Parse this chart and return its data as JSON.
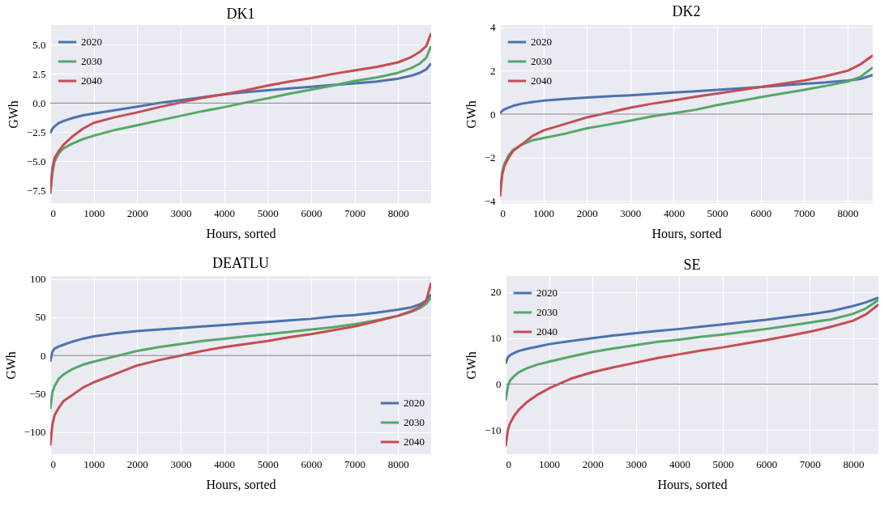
{
  "chart_data": [
    {
      "type": "line",
      "title": "DK1",
      "xlabel": "Hours, sorted",
      "ylabel": "GWh",
      "xlim": [
        0,
        8760
      ],
      "xticks": [
        0,
        1000,
        2000,
        3000,
        4000,
        5000,
        6000,
        7000,
        8000
      ],
      "ylim": [
        -8.6,
        6.7
      ],
      "yticks": [
        {
          "value": -7.5,
          "label": "−7.5"
        },
        {
          "value": -5,
          "label": "−5.0"
        },
        {
          "value": -2.5,
          "label": "−2.5"
        },
        {
          "value": 0,
          "label": "0.0"
        },
        {
          "value": 2.5,
          "label": "2.5"
        },
        {
          "value": 5,
          "label": "5.0"
        }
      ],
      "grid": true,
      "legend": "top left",
      "ref_lines": [
        {
          "axis": "y",
          "value": 0,
          "color": "#808080"
        }
      ],
      "x": [
        0,
        50,
        100,
        200,
        300,
        500,
        750,
        1000,
        1500,
        2000,
        2500,
        3000,
        3500,
        4000,
        4500,
        5000,
        5500,
        6000,
        6500,
        7000,
        7500,
        8000,
        8300,
        8500,
        8650,
        8760
      ],
      "series": [
        {
          "name": "2020",
          "color": "#4c72b0",
          "values": [
            -2.6,
            -2.2,
            -2.0,
            -1.7,
            -1.55,
            -1.3,
            -1.05,
            -0.9,
            -0.6,
            -0.3,
            0.0,
            0.25,
            0.5,
            0.75,
            0.95,
            1.1,
            1.25,
            1.4,
            1.55,
            1.7,
            1.85,
            2.1,
            2.35,
            2.6,
            2.9,
            3.4
          ]
        },
        {
          "name": "2030",
          "color": "#55a868",
          "values": [
            -7.8,
            -6.0,
            -5.0,
            -4.3,
            -3.9,
            -3.5,
            -3.1,
            -2.8,
            -2.3,
            -1.9,
            -1.5,
            -1.1,
            -0.7,
            -0.35,
            0.05,
            0.4,
            0.8,
            1.15,
            1.5,
            1.9,
            2.2,
            2.6,
            3.0,
            3.4,
            3.9,
            4.9
          ]
        },
        {
          "name": "2040",
          "color": "#c44e52",
          "values": [
            -7.6,
            -5.6,
            -4.7,
            -4.1,
            -3.6,
            -2.9,
            -2.2,
            -1.7,
            -1.2,
            -0.8,
            -0.35,
            0.05,
            0.45,
            0.75,
            1.1,
            1.5,
            1.85,
            2.15,
            2.5,
            2.8,
            3.1,
            3.5,
            3.95,
            4.4,
            4.9,
            6.0
          ]
        }
      ]
    },
    {
      "type": "line",
      "title": "DK2",
      "xlabel": "Hours, sorted",
      "ylabel": "GWh",
      "xlim": [
        0,
        8580
      ],
      "xticks": [
        0,
        1000,
        2000,
        3000,
        4000,
        5000,
        6000,
        7000,
        8000
      ],
      "ylim": [
        -4.1,
        4.1
      ],
      "yticks": [
        {
          "value": -4,
          "label": "−4"
        },
        {
          "value": -2,
          "label": "−2"
        },
        0,
        2,
        4
      ],
      "grid": true,
      "legend": "top left",
      "ref_lines": [
        {
          "axis": "y",
          "value": 0,
          "color": "#808080"
        }
      ],
      "x": [
        0,
        50,
        100,
        200,
        300,
        500,
        750,
        1000,
        1500,
        2000,
        2500,
        3000,
        3500,
        4000,
        4500,
        5000,
        5500,
        6000,
        6500,
        7000,
        7500,
        8000,
        8300,
        8580
      ],
      "series": [
        {
          "name": "2020",
          "color": "#4c72b0",
          "values": [
            0.05,
            0.15,
            0.22,
            0.3,
            0.38,
            0.48,
            0.56,
            0.62,
            0.7,
            0.76,
            0.82,
            0.87,
            0.93,
            1.0,
            1.05,
            1.12,
            1.18,
            1.25,
            1.32,
            1.4,
            1.46,
            1.55,
            1.62,
            1.8
          ]
        },
        {
          "name": "2030",
          "color": "#55a868",
          "values": [
            -3.7,
            -2.7,
            -2.3,
            -1.9,
            -1.65,
            -1.4,
            -1.2,
            -1.1,
            -0.9,
            -0.65,
            -0.48,
            -0.3,
            -0.1,
            0.05,
            0.2,
            0.42,
            0.6,
            0.78,
            0.95,
            1.12,
            1.3,
            1.5,
            1.72,
            2.15
          ]
        },
        {
          "name": "2040",
          "color": "#c44e52",
          "values": [
            -3.8,
            -2.8,
            -2.4,
            -2.0,
            -1.7,
            -1.4,
            -1.0,
            -0.75,
            -0.45,
            -0.15,
            0.07,
            0.3,
            0.48,
            0.63,
            0.8,
            0.95,
            1.1,
            1.25,
            1.4,
            1.55,
            1.75,
            2.0,
            2.3,
            2.7
          ]
        }
      ]
    },
    {
      "type": "line",
      "title": "DEATLU",
      "xlabel": "Hours, sorted",
      "ylabel": "GWh",
      "xlim": [
        0,
        8760
      ],
      "xticks": [
        0,
        1000,
        2000,
        3000,
        4000,
        5000,
        6000,
        7000,
        8000
      ],
      "ylim": [
        -129,
        104
      ],
      "yticks": [
        {
          "value": -100,
          "label": "−100"
        },
        {
          "value": -50,
          "label": "−50"
        },
        0,
        50,
        100
      ],
      "grid": true,
      "legend": "bottom right",
      "ref_lines": [
        {
          "axis": "y",
          "value": 0,
          "color": "#808080"
        }
      ],
      "x": [
        0,
        50,
        100,
        200,
        300,
        500,
        750,
        1000,
        1500,
        2000,
        2500,
        3000,
        3500,
        4000,
        4500,
        5000,
        5500,
        6000,
        6500,
        7000,
        7500,
        8000,
        8300,
        8500,
        8650,
        8760
      ],
      "series": [
        {
          "name": "2020",
          "color": "#4c72b0",
          "values": [
            -8,
            5,
            9,
            12,
            14,
            18,
            22,
            25,
            29,
            32,
            34,
            36,
            38,
            40,
            42,
            44,
            46,
            48,
            51,
            53,
            56,
            60,
            63,
            67,
            72,
            80
          ]
        },
        {
          "name": "2030",
          "color": "#55a868",
          "values": [
            -70,
            -48,
            -40,
            -30,
            -25,
            -18,
            -12,
            -8,
            -1,
            6,
            11,
            15,
            19,
            22,
            25,
            28,
            31,
            34,
            37,
            41,
            46,
            52,
            57,
            62,
            68,
            76
          ]
        },
        {
          "name": "2040",
          "color": "#c44e52",
          "values": [
            -118,
            -90,
            -78,
            -68,
            -60,
            -52,
            -42,
            -35,
            -24,
            -13,
            -6,
            0,
            6,
            11,
            15,
            19,
            24,
            28,
            33,
            38,
            45,
            52,
            58,
            64,
            72,
            95
          ]
        }
      ]
    },
    {
      "type": "line",
      "title": "SE",
      "xlabel": "Hours, sorted",
      "ylabel": "GWh",
      "xlim": [
        0,
        8580
      ],
      "xticks": [
        0,
        1000,
        2000,
        3000,
        4000,
        5000,
        6000,
        7000,
        8000
      ],
      "ylim": [
        -15.2,
        23.5
      ],
      "yticks": [
        {
          "value": -10,
          "label": "−10"
        },
        0,
        10,
        20
      ],
      "grid": true,
      "legend": "top left",
      "ref_lines": [
        {
          "axis": "y",
          "value": 0,
          "color": "#808080"
        }
      ],
      "x": [
        0,
        50,
        100,
        200,
        300,
        500,
        750,
        1000,
        1500,
        2000,
        2500,
        3000,
        3500,
        4000,
        4500,
        5000,
        5500,
        6000,
        6500,
        7000,
        7500,
        8000,
        8300,
        8580
      ],
      "series": [
        {
          "name": "2020",
          "color": "#4c72b0",
          "values": [
            4.5,
            5.8,
            6.3,
            6.8,
            7.2,
            7.7,
            8.2,
            8.7,
            9.4,
            10.0,
            10.6,
            11.1,
            11.6,
            12.0,
            12.5,
            13.0,
            13.5,
            14.0,
            14.6,
            15.2,
            15.9,
            17.0,
            17.8,
            18.8
          ]
        },
        {
          "name": "2030",
          "color": "#55a868",
          "values": [
            -3.5,
            -0.5,
            0.8,
            1.8,
            2.6,
            3.5,
            4.3,
            4.9,
            6.0,
            7.0,
            7.8,
            8.5,
            9.2,
            9.7,
            10.3,
            10.8,
            11.4,
            12.0,
            12.7,
            13.4,
            14.1,
            15.3,
            16.5,
            18.3
          ]
        },
        {
          "name": "2040",
          "color": "#c44e52",
          "values": [
            -13.5,
            -10,
            -8.5,
            -6.8,
            -5.6,
            -3.8,
            -2.2,
            -0.9,
            1.2,
            2.6,
            3.7,
            4.7,
            5.7,
            6.5,
            7.3,
            8.0,
            8.8,
            9.6,
            10.5,
            11.4,
            12.5,
            13.8,
            15.2,
            17.3
          ]
        }
      ]
    }
  ]
}
